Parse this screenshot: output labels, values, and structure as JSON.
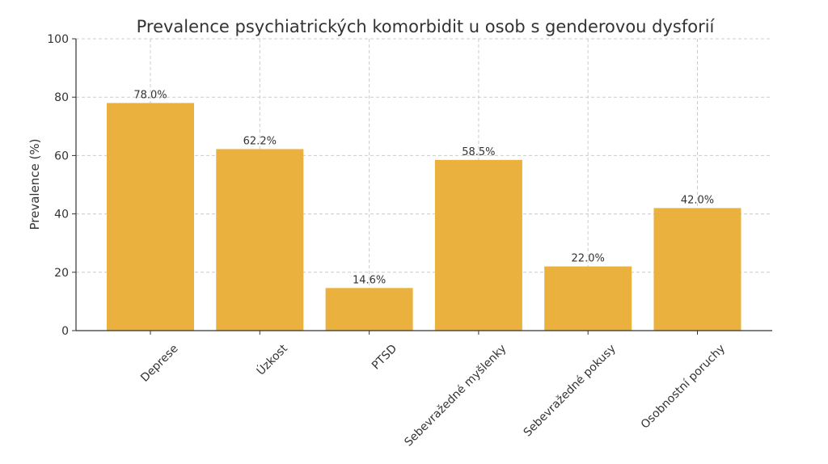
{
  "chart_data": {
    "type": "bar",
    "title": "Prevalence psychiatrických komorbidit u osob s genderovou dysforií",
    "xlabel": "",
    "ylabel": "Prevalence (%)",
    "ylim": [
      0,
      100
    ],
    "yticks": [
      0,
      20,
      40,
      60,
      80,
      100
    ],
    "grid": true,
    "categories": [
      "Deprese",
      "Úzkost",
      "PTSD",
      "Sebevražedné myšlenky",
      "Sebevražedné pokusy",
      "Osobnostní poruchy"
    ],
    "values": [
      78.0,
      62.2,
      14.6,
      58.5,
      22.0,
      42.0
    ],
    "data_labels": [
      "78.0%",
      "62.2%",
      "14.6%",
      "58.5%",
      "22.0%",
      "42.0%"
    ],
    "bar_color": "#EAB13E",
    "x_tick_rotation_deg": 45
  }
}
